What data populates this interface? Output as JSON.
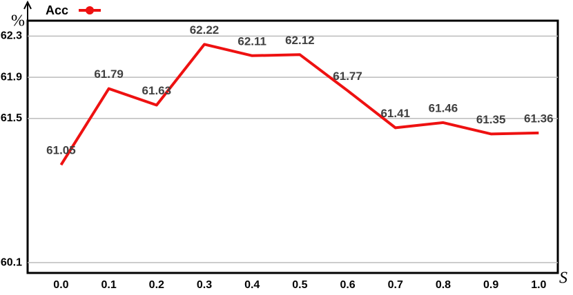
{
  "chart_data": {
    "type": "line",
    "x": [
      0,
      0.1,
      0.2,
      0.3,
      0.4,
      0.5,
      0.6,
      0.7,
      0.8,
      0.9,
      1
    ],
    "series": [
      {
        "name": "Acc",
        "color": "#ee1111",
        "values": [
          61.05,
          61.79,
          61.63,
          62.22,
          62.11,
          62.12,
          61.77,
          61.41,
          61.46,
          61.35,
          61.36
        ]
      }
    ],
    "xlim": [
      -0.07,
      1.04
    ],
    "xticks": [
      {
        "value": 0,
        "label": "0.0"
      },
      0.1,
      0.2,
      0.3,
      0.4,
      0.5,
      0.6,
      0.7,
      0.8,
      0.9,
      {
        "value": 1,
        "label": "1.0"
      }
    ],
    "ylim": [
      60.0,
      62.45
    ],
    "yticks": [
      60.1,
      61.5,
      61.9,
      62.3
    ],
    "y_label": "%",
    "x_label": "S",
    "grid": true,
    "legend": "top-left"
  }
}
